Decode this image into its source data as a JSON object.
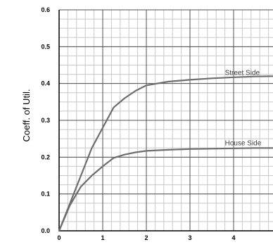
{
  "chart_data": {
    "type": "line",
    "ylabel": "Coeff. of Util.",
    "xlabel": "",
    "xlim": [
      0,
      5
    ],
    "ylim": [
      0,
      0.6
    ],
    "x_ticks": [
      0,
      1,
      2,
      3,
      4
    ],
    "x_tick_labels": [
      "0",
      "1",
      "2",
      "3",
      "4"
    ],
    "y_ticks": [
      0,
      0.1,
      0.2,
      0.3,
      0.4,
      0.5,
      0.6
    ],
    "y_tick_labels": [
      "0.0",
      "0.1",
      "0.2",
      "0.3",
      "0.4",
      "0.5",
      "0.6"
    ],
    "grid": true,
    "minor_grid": true,
    "series_color": "#6e6e6e",
    "series": [
      {
        "name": "Street Side",
        "x": [
          0,
          0.25,
          0.5,
          0.75,
          1.0,
          1.25,
          1.5,
          1.75,
          2.0,
          2.5,
          3.0,
          3.5,
          4.0,
          4.5,
          5.0
        ],
        "y": [
          0,
          0.075,
          0.15,
          0.225,
          0.28,
          0.335,
          0.36,
          0.38,
          0.395,
          0.405,
          0.41,
          0.414,
          0.417,
          0.419,
          0.42
        ]
      },
      {
        "name": "House Side",
        "x": [
          0,
          0.25,
          0.5,
          0.75,
          1.0,
          1.25,
          1.5,
          1.75,
          2.0,
          2.5,
          3.0,
          3.5,
          4.0,
          4.5,
          5.0
        ],
        "y": [
          0,
          0.07,
          0.12,
          0.15,
          0.175,
          0.198,
          0.207,
          0.213,
          0.217,
          0.22,
          0.222,
          0.223,
          0.224,
          0.225,
          0.225
        ]
      }
    ]
  }
}
